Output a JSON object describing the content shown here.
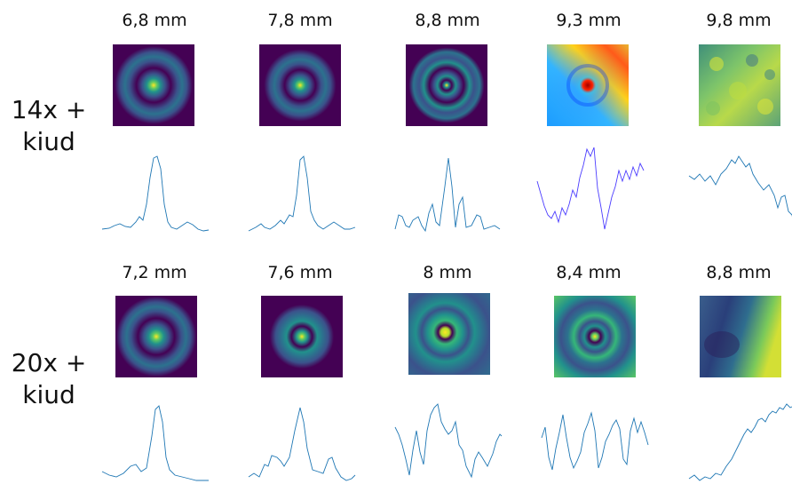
{
  "rows": [
    {
      "label_line1": "14x +",
      "label_line2": "kiud",
      "panels": [
        {
          "distance": "6,8 mm",
          "image": "viridis-central-spot-rings"
        },
        {
          "distance": "7,8 mm",
          "image": "viridis-central-spot-rings"
        },
        {
          "distance": "8,8 mm",
          "image": "viridis-central-spot-rings"
        },
        {
          "distance": "9,3 mm",
          "image": "jet-speckled-spot"
        },
        {
          "distance": "9,8 mm",
          "image": "viridis-speckle"
        }
      ]
    },
    {
      "label_line1": "20x +",
      "label_line2": "kiud",
      "panels": [
        {
          "distance": "7,2 mm",
          "image": "viridis-central-spot-rings"
        },
        {
          "distance": "7,6 mm",
          "image": "viridis-central-spot-rings"
        },
        {
          "distance": "8 mm",
          "image": "viridis-central-spot-rings"
        },
        {
          "distance": "8,4 mm",
          "image": "viridis-central-spot-rings"
        },
        {
          "distance": "8,8 mm",
          "image": "viridis-gradient-field"
        }
      ]
    }
  ],
  "colors": {
    "viridis_dark": "#440154",
    "viridis_mid": "#21918c",
    "viridis_light": "#fde725",
    "profile_line": "#1f77b4",
    "profile_line_alt": "#4b3cff"
  }
}
